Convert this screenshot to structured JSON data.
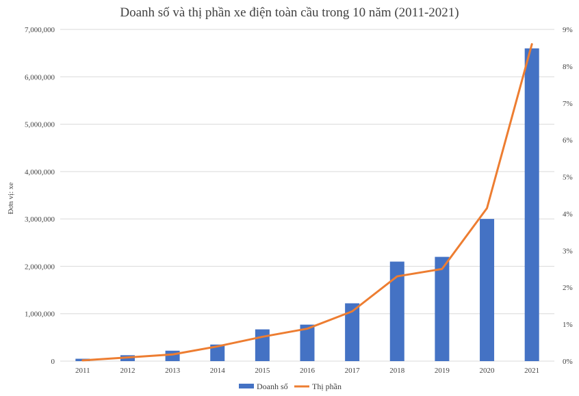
{
  "chart_data": {
    "type": "bar",
    "title": "Doanh số và thị phần xe điện toàn cầu trong 10 năm (2011-2021)",
    "ylabel": "Đơn vị: xe",
    "categories": [
      "2011",
      "2012",
      "2013",
      "2014",
      "2015",
      "2016",
      "2017",
      "2018",
      "2019",
      "2020",
      "2021"
    ],
    "ylim": [
      0,
      7000000
    ],
    "y2lim": [
      0,
      9
    ],
    "y_ticks": [
      "0",
      "1,000,000",
      "2,000,000",
      "3,000,000",
      "4,000,000",
      "5,000,000",
      "6,000,000",
      "7,000,000"
    ],
    "y2_ticks": [
      "0%",
      "1%",
      "2%",
      "3%",
      "4%",
      "5%",
      "6%",
      "7%",
      "8%",
      "9%"
    ],
    "grid": true,
    "legend_position": "bottom",
    "series": [
      {
        "name": "Doanh số",
        "type": "bar",
        "axis": "left",
        "color": "#4472C4",
        "values": [
          50000,
          125000,
          220000,
          350000,
          670000,
          770000,
          1220000,
          2100000,
          2200000,
          3000000,
          6600000
        ]
      },
      {
        "name": "Thị phần",
        "type": "line",
        "axis": "right",
        "unit": "%",
        "color": "#ED7D31",
        "values": [
          0.02,
          0.1,
          0.18,
          0.4,
          0.66,
          0.88,
          1.35,
          2.3,
          2.5,
          4.15,
          8.6
        ]
      }
    ]
  }
}
